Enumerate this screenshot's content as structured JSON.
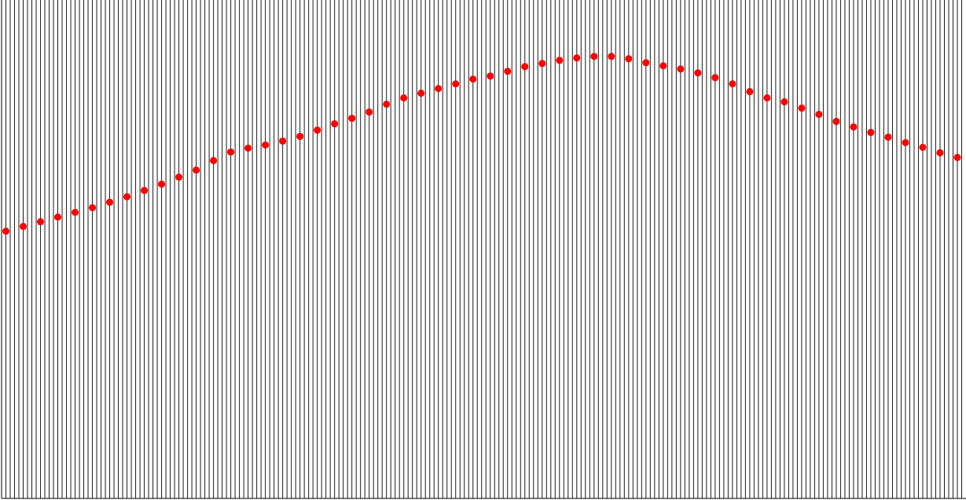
{
  "chart_data": {
    "type": "scatter",
    "tick_labels": false,
    "xlim": [
      -1,
      222
    ],
    "ylim": [
      0,
      636
    ],
    "color": "#ff0000",
    "marker": "circle",
    "x": [
      0,
      4,
      8,
      12,
      16,
      20,
      24,
      28,
      32,
      36,
      40,
      44,
      48,
      52,
      56,
      60,
      64,
      68,
      72,
      76,
      80,
      84,
      88,
      92,
      96,
      100,
      104,
      108,
      112,
      116,
      120,
      124,
      128,
      132,
      136,
      140,
      144,
      148,
      152,
      156,
      160,
      164,
      168,
      172,
      176,
      180,
      184,
      188,
      192,
      196,
      200,
      204,
      208,
      212,
      216,
      220
    ],
    "values": [
      295,
      289,
      283,
      277,
      271,
      265,
      258,
      251,
      243,
      235,
      226,
      217,
      205,
      194,
      189,
      185,
      180,
      174,
      166,
      158,
      151,
      143,
      133,
      125,
      119,
      113,
      107,
      101,
      97,
      91,
      85,
      81,
      77,
      74,
      72,
      72,
      75,
      80,
      84,
      88,
      93,
      99,
      107,
      117,
      125,
      130,
      138,
      146,
      155,
      162,
      169,
      175,
      182,
      188,
      195,
      201
    ],
    "traces": [
      0,
      1,
      2,
      3,
      4,
      5,
      6,
      7,
      8,
      9,
      10,
      11,
      12,
      13,
      14,
      15,
      16,
      17,
      18,
      19,
      20,
      21,
      22,
      23,
      24,
      25,
      26,
      27,
      28,
      29,
      30,
      31,
      32,
      33,
      34,
      35,
      36,
      37,
      38,
      39,
      40,
      41,
      42,
      43,
      44,
      45,
      46,
      47,
      48,
      49,
      50,
      51,
      52,
      53,
      54,
      55,
      56,
      57,
      58,
      59,
      60,
      61,
      62,
      63,
      64,
      65,
      66,
      67,
      68,
      69,
      70,
      71,
      72,
      73,
      74,
      75,
      76,
      77,
      78,
      79,
      80,
      81,
      82,
      83,
      84,
      85,
      86,
      87,
      88,
      89,
      90,
      91,
      92,
      93,
      94,
      95,
      96,
      97,
      98,
      99,
      100,
      101,
      102,
      103,
      104,
      105,
      106,
      107,
      108,
      109,
      110,
      111,
      112,
      113,
      114,
      115,
      116,
      117,
      118,
      119,
      120,
      121,
      122,
      123,
      124,
      125,
      126,
      127,
      128,
      129,
      130,
      131,
      132,
      133,
      134,
      135,
      136,
      137,
      138,
      139,
      140,
      141,
      142,
      143,
      144,
      145,
      146,
      147,
      148,
      149,
      150,
      151,
      152,
      153,
      154,
      155,
      156,
      157,
      158,
      159,
      160,
      161,
      162,
      163,
      164,
      165,
      166,
      167,
      168,
      169,
      170,
      171,
      172,
      173,
      174,
      175,
      176,
      177,
      178,
      179,
      180,
      181,
      182,
      183,
      184,
      185,
      186,
      187,
      188,
      189,
      190,
      191,
      192,
      193,
      194,
      195,
      196,
      197,
      198,
      199,
      200,
      201,
      202,
      203,
      204,
      205,
      206,
      207,
      208,
      209,
      210,
      211,
      212,
      213,
      214,
      215,
      216,
      217,
      218,
      219,
      220,
      221
    ]
  }
}
